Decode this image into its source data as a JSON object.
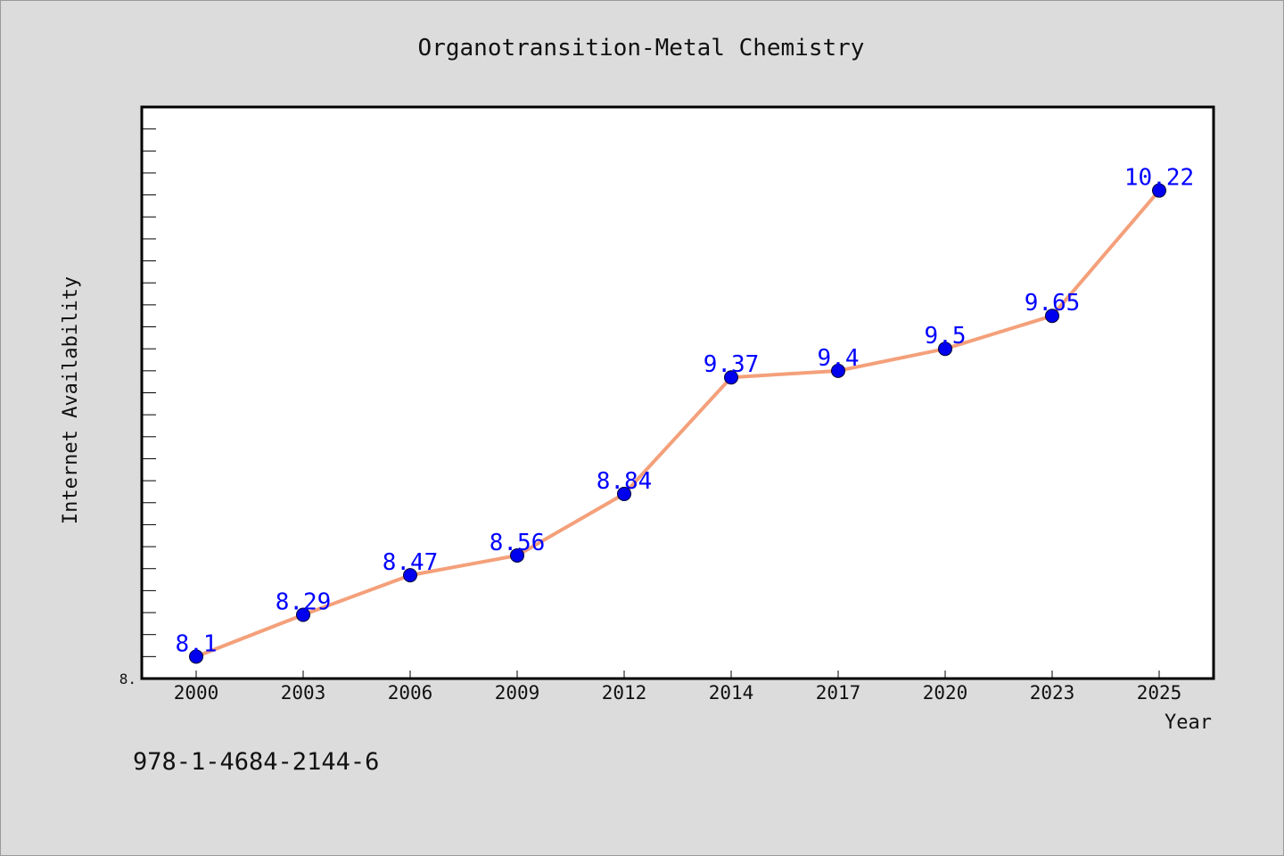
{
  "chart_data": {
    "type": "line",
    "title": "Organotransition-Metal Chemistry",
    "xlabel": "Year",
    "ylabel": "Internet Availability",
    "categories": [
      "2000",
      "2003",
      "2006",
      "2009",
      "2012",
      "2014",
      "2017",
      "2020",
      "2023",
      "2025"
    ],
    "series": [
      {
        "values": [
          8.1,
          8.29,
          8.47,
          8.56,
          8.84,
          9.37,
          9.4,
          9.5,
          9.65,
          10.22
        ],
        "line_color": "#f4a07a",
        "marker_color": "#0000ee"
      }
    ],
    "data_labels": [
      "8.1",
      "8.29",
      "8.47",
      "8.56",
      "8.84",
      "9.37",
      "9.4",
      "9.5",
      "9.65",
      "10.22"
    ],
    "ylim": [
      8.0,
      10.6
    ],
    "yticks_labeled": [
      "8."
    ],
    "legend": "none",
    "grid": false,
    "label_color": "#0000ff"
  },
  "footer_text": "978-1-4684-2144-6"
}
